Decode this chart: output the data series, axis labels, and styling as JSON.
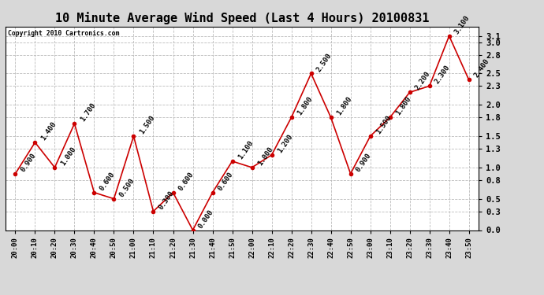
{
  "title": "10 Minute Average Wind Speed (Last 4 Hours) 20100831",
  "copyright": "Copyright 2010 Cartronics.com",
  "x_labels": [
    "20:00",
    "20:10",
    "20:20",
    "20:30",
    "20:40",
    "20:50",
    "21:00",
    "21:10",
    "21:20",
    "21:30",
    "21:40",
    "21:50",
    "22:00",
    "22:10",
    "22:20",
    "22:30",
    "22:40",
    "22:50",
    "23:00",
    "23:10",
    "23:20",
    "23:30",
    "23:40",
    "23:50"
  ],
  "y_values": [
    0.9,
    1.4,
    1.0,
    1.7,
    0.6,
    0.5,
    1.5,
    0.3,
    0.6,
    0.0,
    0.6,
    1.1,
    1.0,
    1.2,
    1.8,
    2.5,
    1.8,
    0.9,
    1.5,
    1.8,
    2.2,
    2.3,
    3.1,
    2.4
  ],
  "y_labels": [
    "0.900",
    "1.400",
    "1.000",
    "1.700",
    "0.600",
    "0.500",
    "1.500",
    "0.300",
    "0.600",
    "0.000",
    "0.600",
    "1.100",
    "1.000",
    "1.200",
    "1.800",
    "2.500",
    "1.800",
    "0.900",
    "1.500",
    "1.800",
    "2.200",
    "2.300",
    "3.100",
    "2.400"
  ],
  "line_color": "#cc0000",
  "marker_color": "#cc0000",
  "background_color": "#d8d8d8",
  "plot_bg_color": "#ffffff",
  "grid_color": "#bbbbbb",
  "ylim": [
    0.0,
    3.25
  ],
  "yticks": [
    0.0,
    0.3,
    0.5,
    0.8,
    1.0,
    1.3,
    1.5,
    1.8,
    2.0,
    2.3,
    2.5,
    2.8,
    3.0,
    3.1
  ],
  "title_fontsize": 11,
  "annotation_fontsize": 6.5
}
